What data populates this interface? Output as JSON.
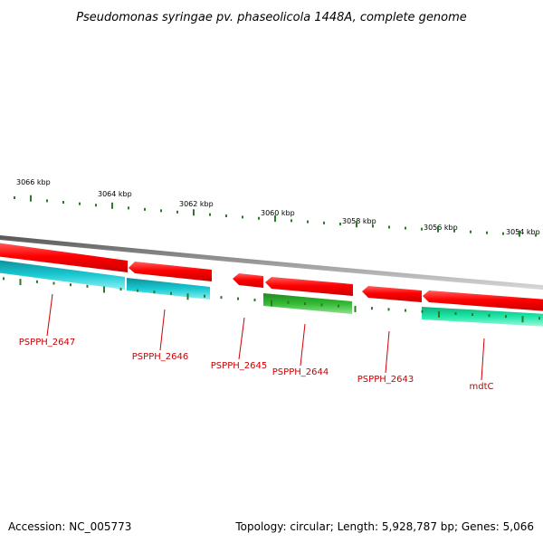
{
  "title": "Pseudomonas syringae pv. phaseolicola 1448A, complete genome",
  "colors": {
    "backbone": "#8a8a8a",
    "forward_gene": "#ff0000",
    "reverse_gene_cyan": "#19c9d2",
    "reverse_gene_green": "#33bb33",
    "reverse_gene_mint": "#1ee8a8",
    "tick": "#2a7a2a",
    "gene_label": "#cc0000"
  },
  "scale_labels": [
    "3066 kbp",
    "3064 kbp",
    "3062 kbp",
    "3060 kbp",
    "3058 kbp",
    "3056 kbp",
    "3054 kbp"
  ],
  "genes": [
    {
      "label": "PSPPH_2647",
      "strand": "reverse",
      "color": "cyan"
    },
    {
      "label": "PSPPH_2646",
      "strand": "reverse",
      "color": "cyan"
    },
    {
      "label": "PSPPH_2645",
      "strand": "forward",
      "color": "red"
    },
    {
      "label": "PSPPH_2644",
      "strand": "reverse",
      "color": "green"
    },
    {
      "label": "PSPPH_2643",
      "strand": "forward",
      "color": "red"
    },
    {
      "label": "mdtC",
      "strand": "reverse",
      "color": "mint"
    }
  ],
  "footer": {
    "accession": "Accession: NC_005773",
    "info": "Topology: circular; Length: 5,928,787 bp; Genes: 5,066"
  }
}
